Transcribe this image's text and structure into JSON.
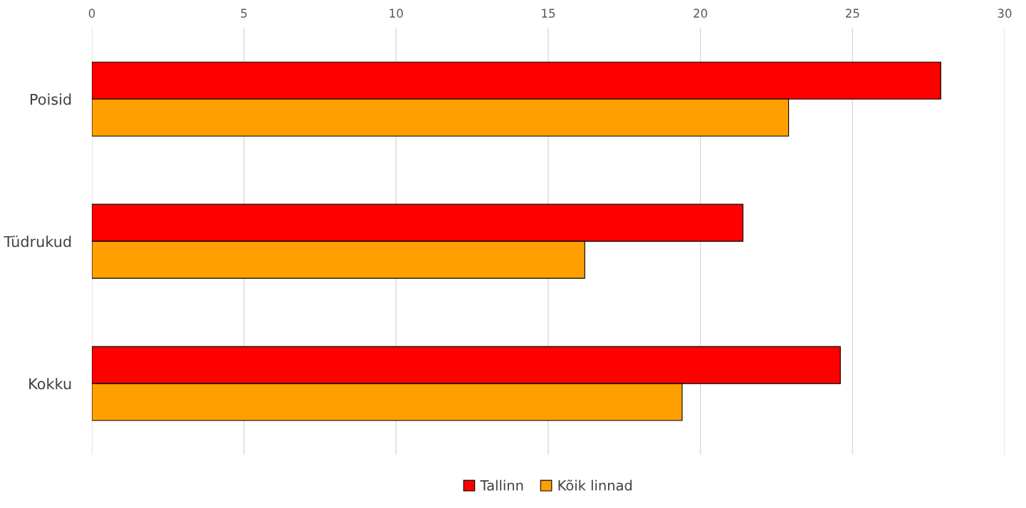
{
  "chart_data": {
    "type": "bar",
    "orientation": "horizontal",
    "categories": [
      "Poisid",
      "Tüdrukud",
      "Kokku"
    ],
    "series": [
      {
        "name": "Tallinn",
        "color": "#ff0000",
        "values": [
          27.9,
          21.4,
          24.6
        ]
      },
      {
        "name": "Kõik linnad",
        "color": "#ffa000",
        "values": [
          22.9,
          16.2,
          19.4
        ]
      }
    ],
    "xlim": [
      0,
      30
    ],
    "xticks": [
      0,
      5,
      10,
      15,
      20,
      25,
      30
    ],
    "grid": "x",
    "legend": "bottom"
  }
}
